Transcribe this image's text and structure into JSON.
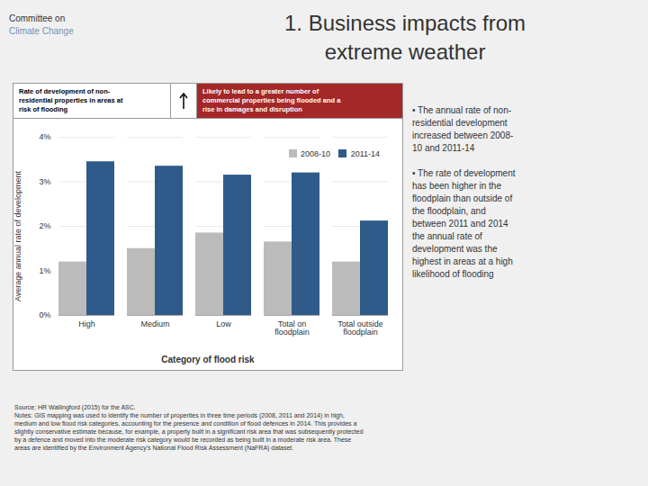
{
  "chart_data": {
    "type": "bar",
    "title": "1. Business impacts from\nextreme weather",
    "categories": [
      "High",
      "Medium",
      "Low",
      "Total on\nfloodplain",
      "Total outside\nfloodplain"
    ],
    "series": [
      {
        "name": "2008-10",
        "color": "#BBBBBB",
        "values": [
          0.012,
          0.015,
          0.0185,
          0.0165,
          0.012
        ]
      },
      {
        "name": "2011-14",
        "color": "#2E5B8A",
        "values": [
          0.0345,
          0.0335,
          0.0315,
          0.032,
          0.0212
        ]
      }
    ],
    "xlabel": "Category of flood risk",
    "ylabel": "Average annual rate of development",
    "ylim": [
      0,
      0.04
    ],
    "yticks": [
      {
        "value": 0,
        "label": "0%"
      },
      {
        "value": 0.01,
        "label": "1%"
      },
      {
        "value": 0.02,
        "label": "2%"
      },
      {
        "value": 0.03,
        "label": "3%"
      },
      {
        "value": 0.04,
        "label": "4%"
      }
    ],
    "grid": true,
    "legend": "upper right",
    "annotations": [
      "Committee on",
      "Climate Change",
      "Rate of development of non-\nresidential properties in areas at\nrisk of flooding",
      "Likely to lead to a greater number of\ncommercial properties being flooded and a\nrise in damages and disruption",
      "• The annual rate of non-\nresidential development\nincreased between 2008-\n10 and 2011-14",
      "• The rate of development\nhas been higher in the\nfloodplain than outside of\nthe floodplain, and\nbetween 2011 and 2014\nthe annual rate of\ndevelopment was the\nhighest in areas at a high\nlikelihood of flooding",
      "Source: HR Wallingford (2015) for the ASC.\nNotes: GIS mapping was used to identify the number of properties in three time periods (2008, 2011 and 2014) in high,\nmedium and low flood risk categories, accounting for the presence and condition of flood defences in 2014. This provides a\nslightly conservative estimate because, for example, a property built in a significant risk area that was subsequently protected\nby a defence and moved into the moderate risk category would be recorded as being built in a moderate risk area. These\nareas are identified by the Environment Agency's National Flood Risk Assessment (NaFRA) dataset."
    ]
  }
}
